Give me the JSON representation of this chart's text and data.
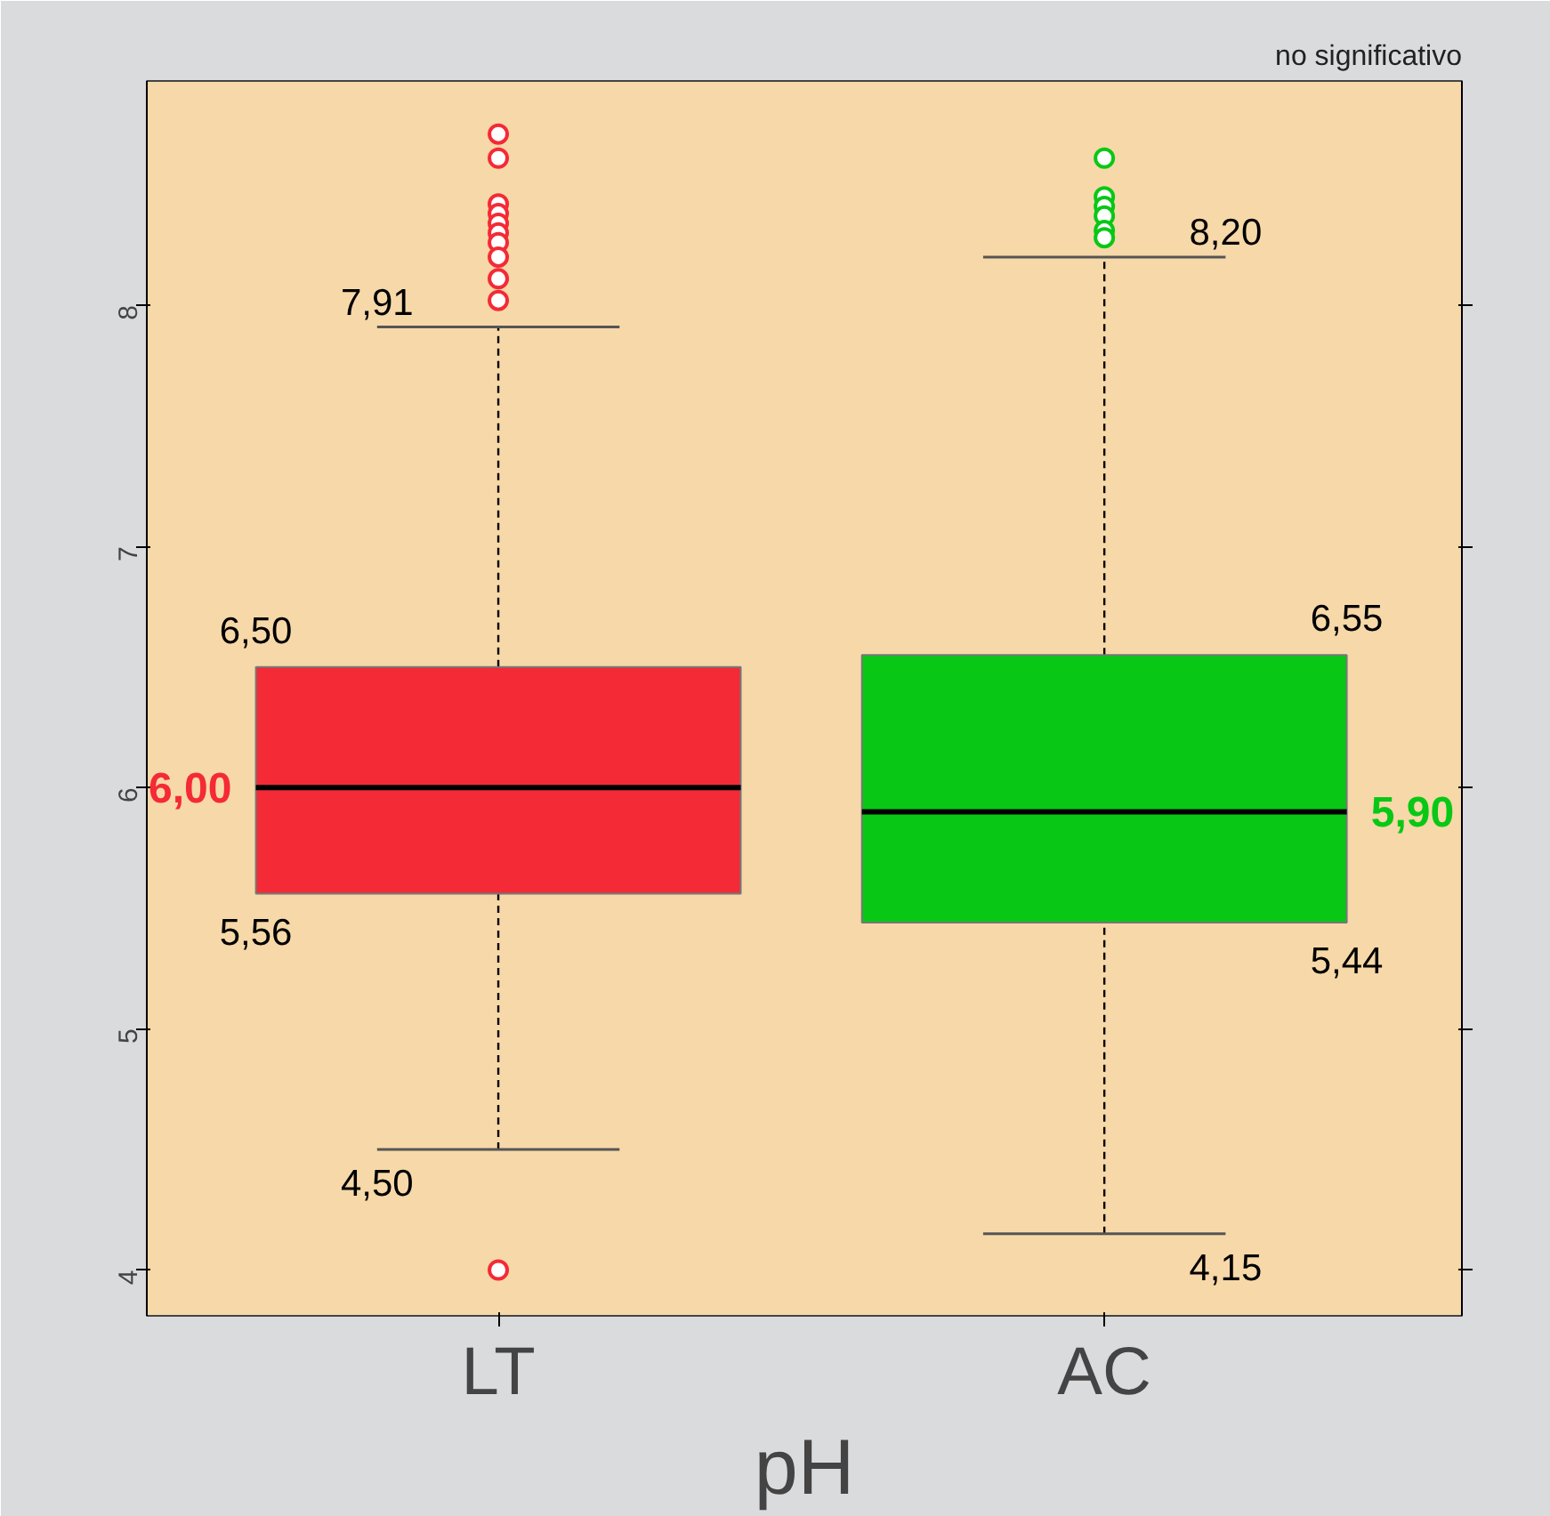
{
  "chart_data": {
    "type": "box",
    "title": "no significativo",
    "xlabel": "pH",
    "categories": [
      "LT",
      "AC"
    ],
    "series": [
      {
        "color": "#f42a36",
        "boxes": [
          {
            "low": 4.5,
            "q1": 5.56,
            "median": 6.0,
            "q3": 6.5,
            "high": 7.91,
            "outliers": [
              8.71,
              8.61,
              8.42,
              8.38,
              8.34,
              8.3,
              8.26,
              8.2,
              8.11,
              8.02,
              4.0
            ]
          },
          null
        ]
      },
      {
        "color": "#08c815",
        "boxes": [
          null,
          {
            "low": 4.15,
            "q1": 5.44,
            "median": 5.9,
            "q3": 6.55,
            "high": 8.2,
            "outliers": [
              8.61,
              8.45,
              8.41,
              8.37,
              8.31,
              8.28
            ]
          }
        ]
      }
    ],
    "ylim": [
      3.81,
      8.93
    ],
    "yticks": [
      4,
      5,
      6,
      7,
      8
    ],
    "grid": false,
    "annotations": [
      {
        "text": "7,91",
        "x": "LT",
        "y": 7.91
      },
      "6,50",
      "6,00",
      "5,56",
      {
        "text": "4,50",
        "x": "LT",
        "y": 4.5
      },
      {
        "text": "8,20",
        "x": "AC",
        "y": 8.2
      },
      "6,55",
      "5,90",
      "5,44",
      {
        "text": "4,15",
        "x": "AC",
        "y": 4.15
      }
    ]
  }
}
